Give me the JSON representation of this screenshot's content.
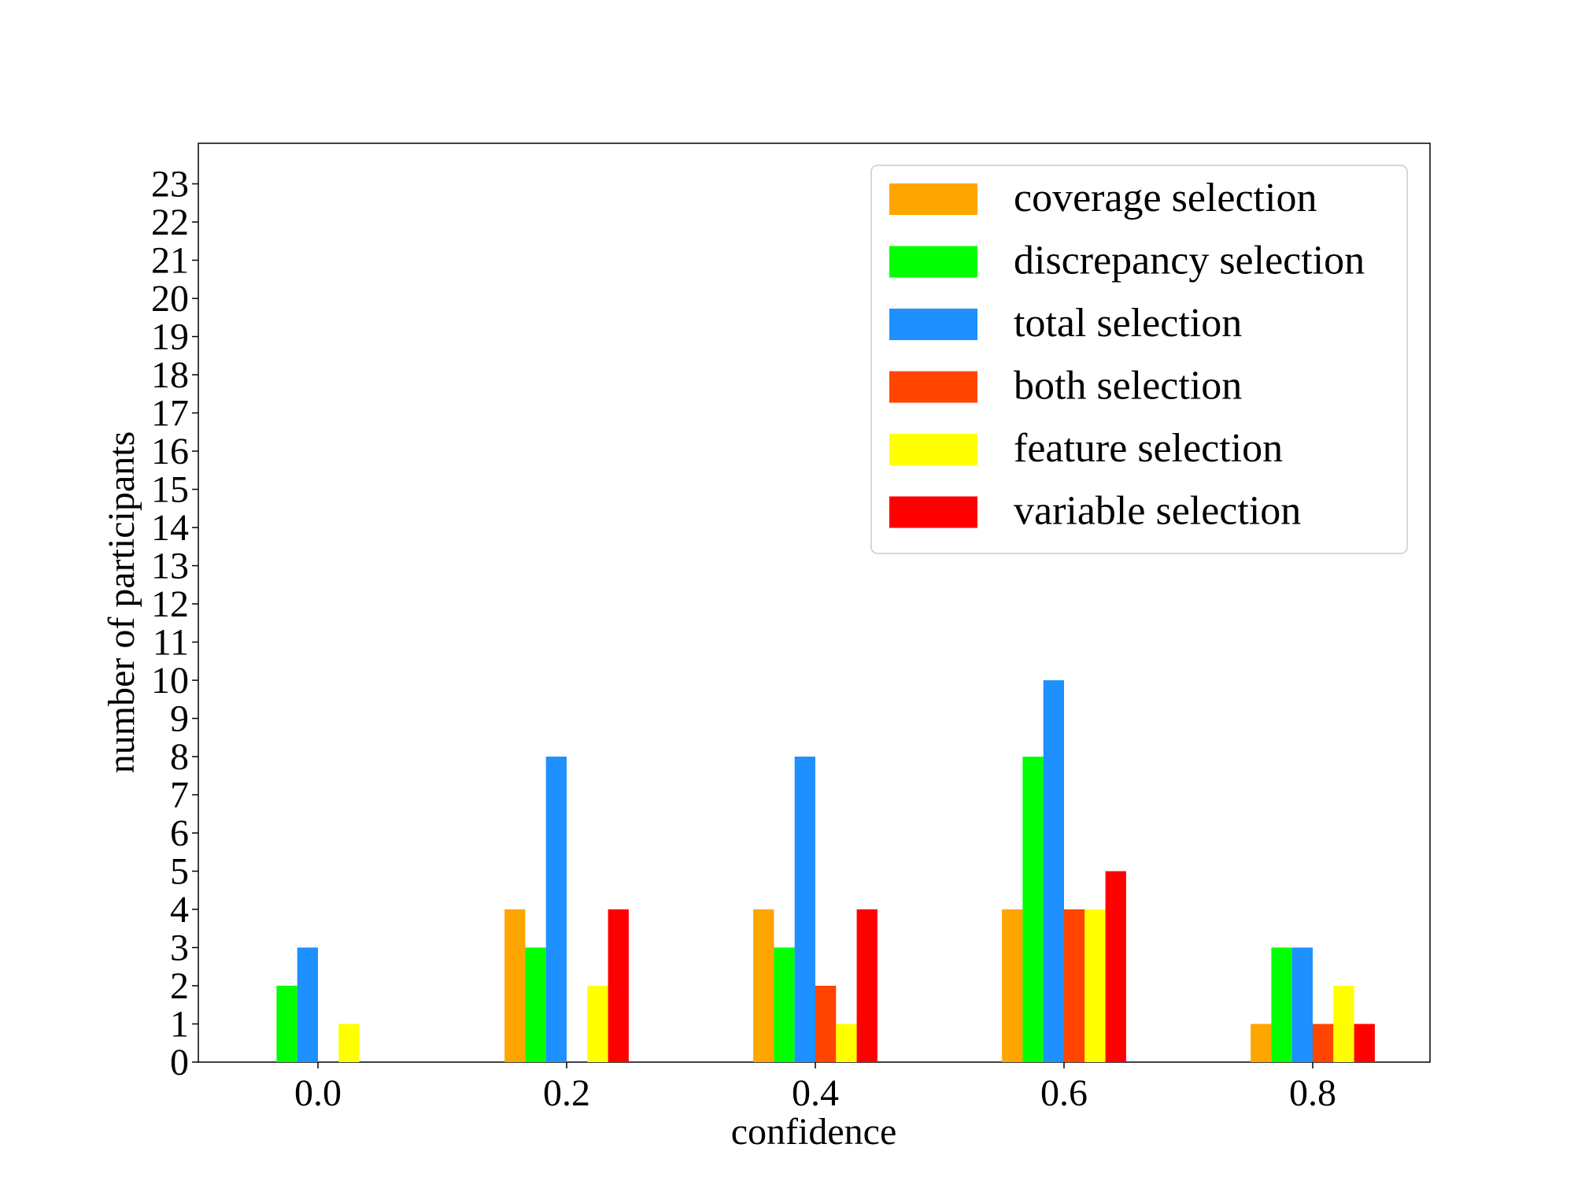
{
  "chart_data": {
    "type": "bar",
    "xlabel": "confidence",
    "ylabel": "number of participants",
    "categories": [
      "0.0",
      "0.2",
      "0.4",
      "0.6",
      "0.8"
    ],
    "ylim": [
      0,
      24
    ],
    "yticks": [
      0,
      1,
      2,
      3,
      4,
      5,
      6,
      7,
      8,
      9,
      10,
      11,
      12,
      13,
      14,
      15,
      16,
      17,
      18,
      19,
      20,
      21,
      22,
      23
    ],
    "legend_position": "top-right",
    "grid": false,
    "series": [
      {
        "name": "coverage selection",
        "color": "#FFA500",
        "values": [
          0,
          4,
          4,
          4,
          1
        ]
      },
      {
        "name": "discrepancy selection",
        "color": "#00FF00",
        "values": [
          2,
          3,
          3,
          8,
          3
        ]
      },
      {
        "name": "total selection",
        "color": "#1E90FF",
        "values": [
          3,
          8,
          8,
          10,
          3
        ]
      },
      {
        "name": "both selection",
        "color": "#FF4500",
        "values": [
          0,
          0,
          2,
          4,
          1
        ]
      },
      {
        "name": "feature selection",
        "color": "#FFFF00",
        "values": [
          1,
          2,
          1,
          4,
          2
        ]
      },
      {
        "name": "variable selection",
        "color": "#FF0000",
        "values": [
          0,
          4,
          4,
          5,
          1
        ]
      }
    ]
  }
}
